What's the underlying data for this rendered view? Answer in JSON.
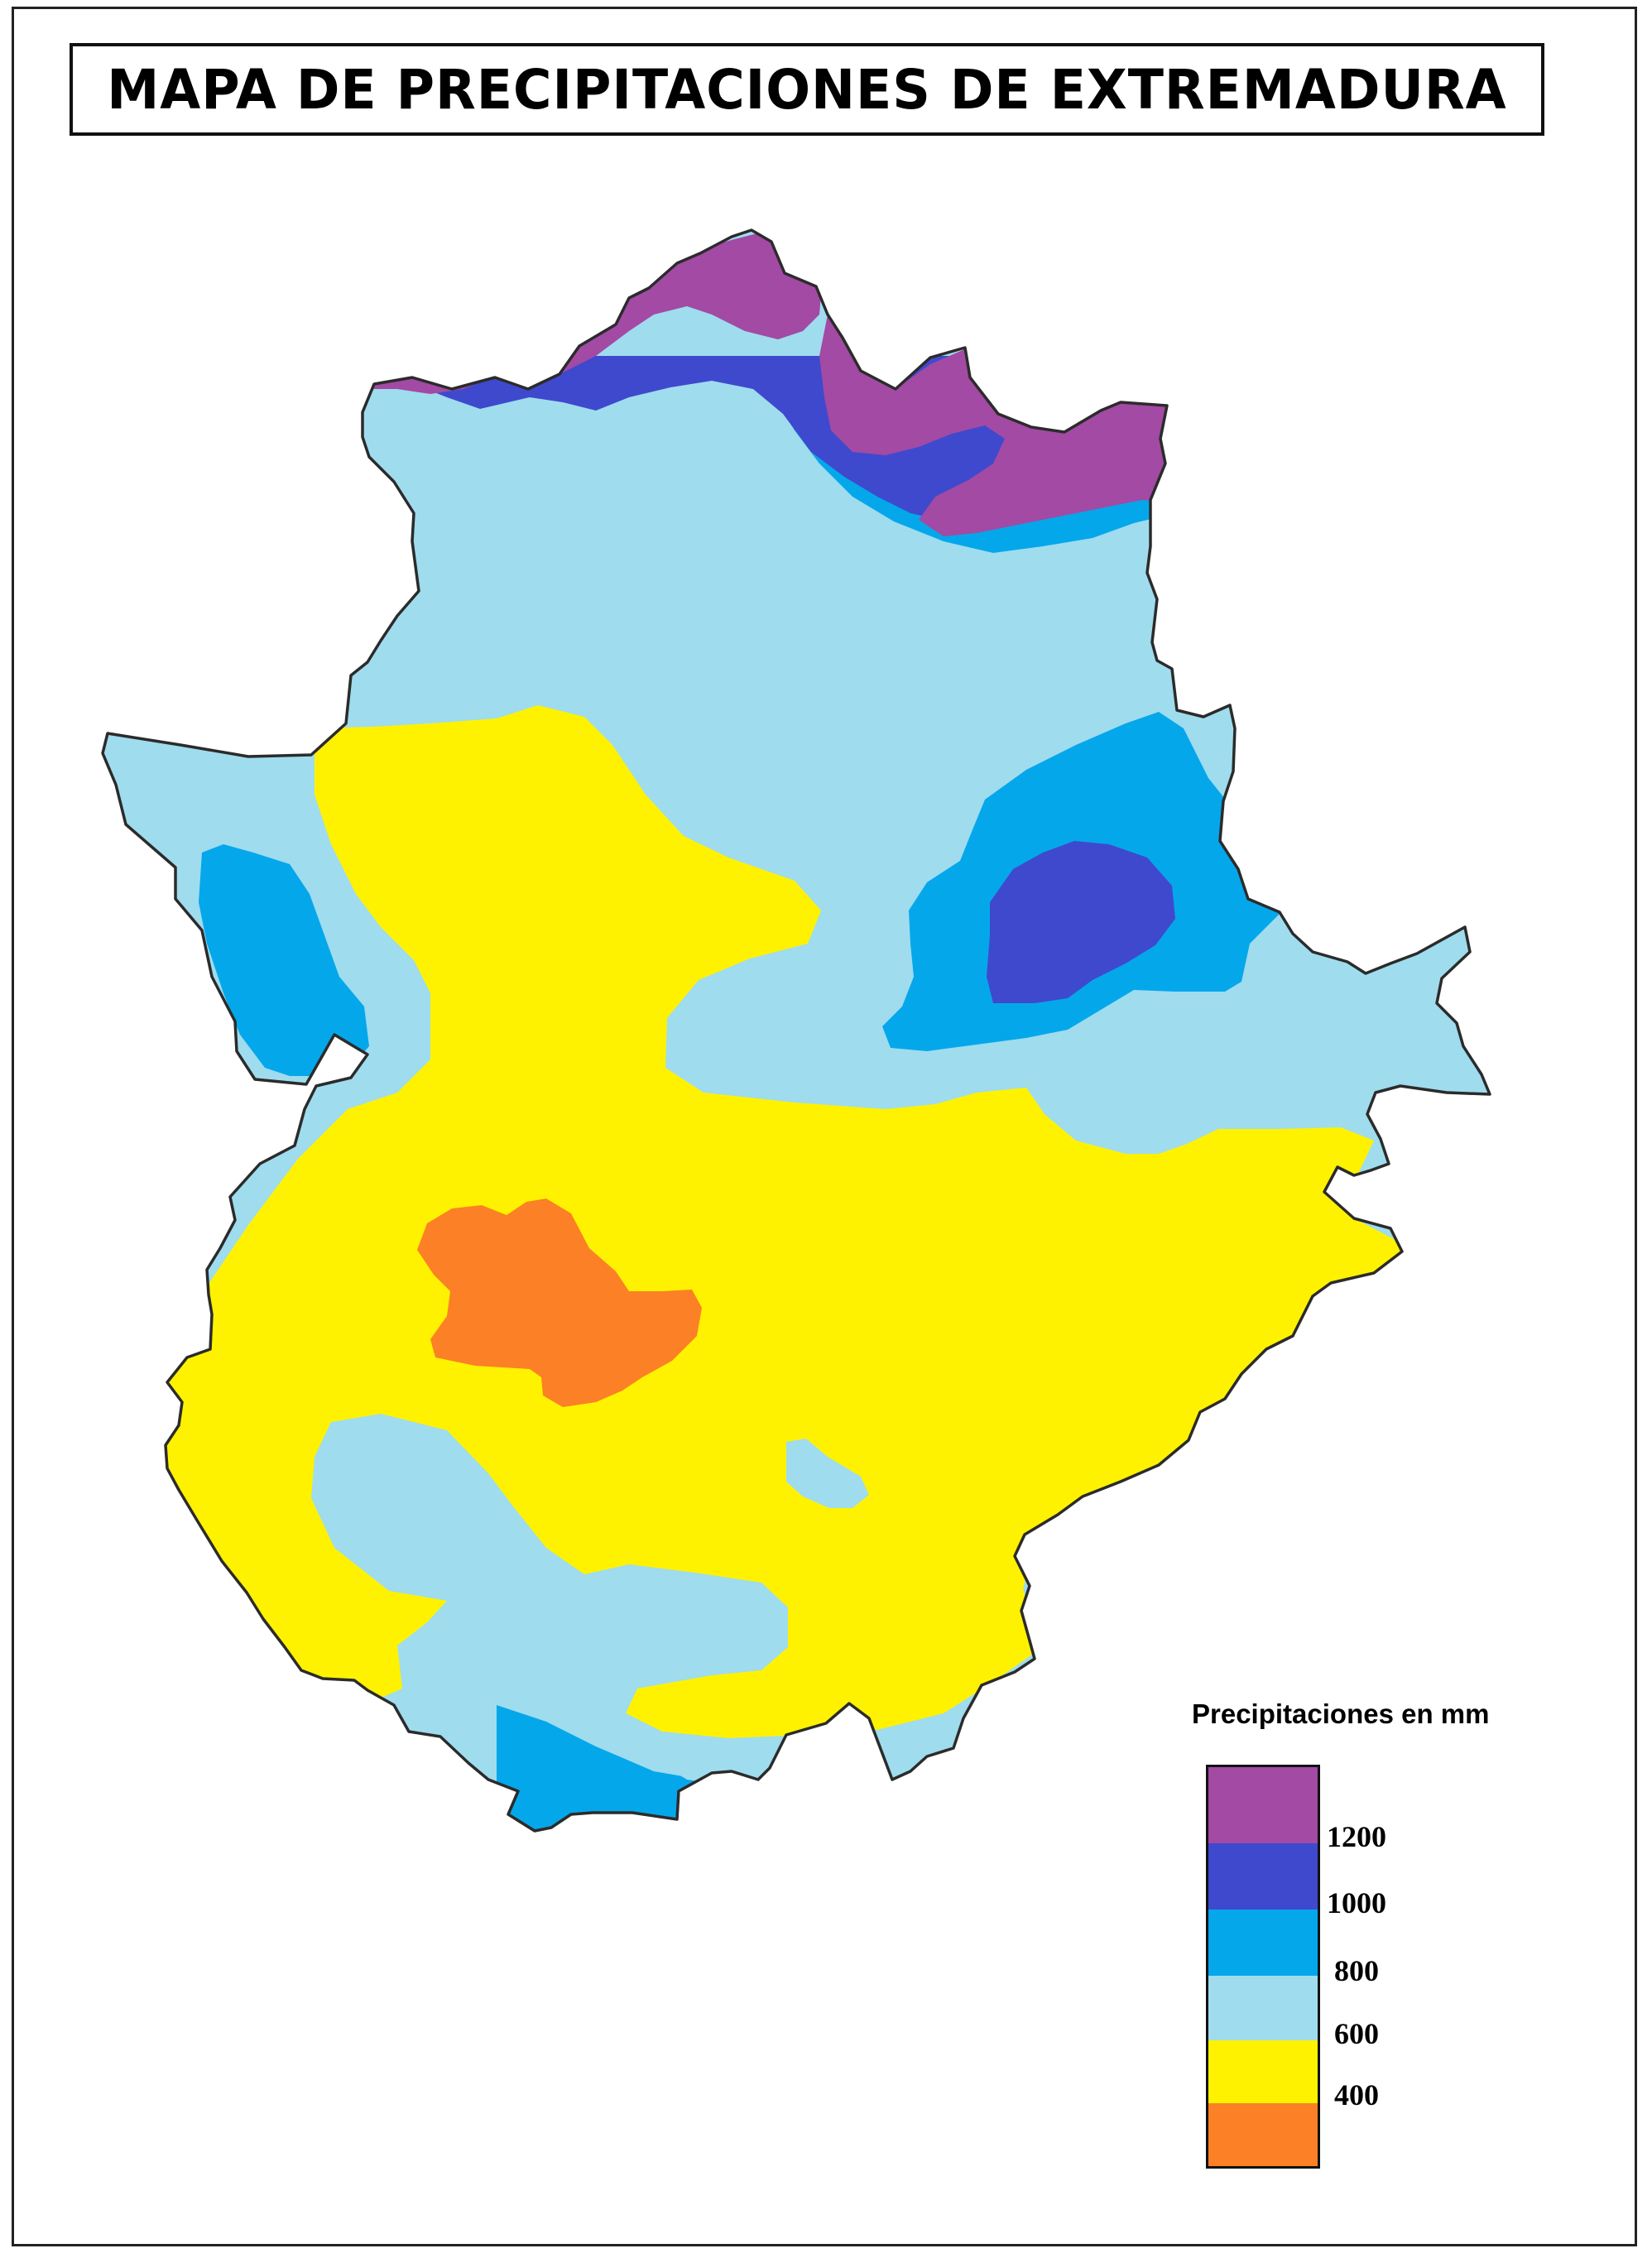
{
  "title": "MAPA DE PRECIPITACIONES DE EXTREMADURA",
  "legend": {
    "title": "Precipitaciones en mm",
    "bands": [
      {
        "color": "#a24aa4",
        "range": "> 1200"
      },
      {
        "color": "#3f49cd",
        "range": "1000 - 1200"
      },
      {
        "color": "#05a7eb",
        "range": "800 - 1000"
      },
      {
        "color": "#9fdcee",
        "range": "600 - 800"
      },
      {
        "color": "#fff200",
        "range": "400 - 600"
      },
      {
        "color": "#fc8026",
        "range": "< 400"
      }
    ],
    "tick_labels": [
      "1200",
      "1000",
      "800",
      "600",
      "400"
    ]
  },
  "colors": {
    "over_1200": "#a24aa4",
    "1000_1200": "#3f49cd",
    "800_1000": "#05a7eb",
    "600_800": "#9fdcee",
    "400_600": "#fff200",
    "under_400": "#fc8026",
    "border": "#2b2b2b"
  }
}
